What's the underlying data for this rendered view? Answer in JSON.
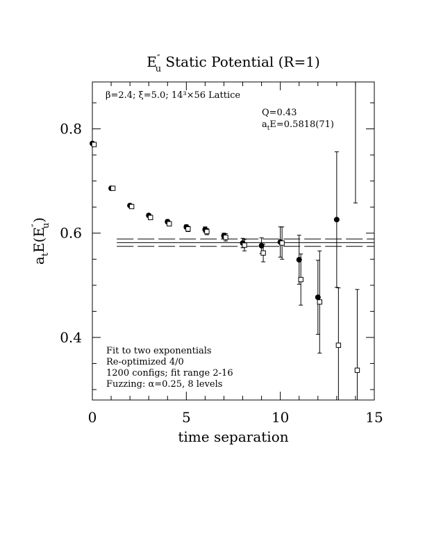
{
  "chart_data": {
    "type": "scatter",
    "title": {
      "main": "E",
      "superscript": "″",
      "subscript": "u",
      "rest": "  Static Potential (R=1)"
    },
    "subtitle": "β=2.4; ξ=5.0; 14³×56 Lattice",
    "xlabel": "time separation",
    "ylabel": {
      "pre": "a",
      "pre_sub": "t",
      "mid": "E(E",
      "sup": "″",
      "sub": "u",
      "post": ")"
    },
    "xlim": [
      0,
      15
    ],
    "ylim": [
      0.28,
      0.89
    ],
    "x_ticks": [
      0,
      5,
      10,
      15
    ],
    "x_tick_labels": [
      "0",
      "5",
      "10",
      "15"
    ],
    "y_ticks": [
      0.4,
      0.6,
      0.8
    ],
    "y_tick_labels": [
      "0.4",
      "0.6",
      "0.8"
    ],
    "grid": false,
    "annotations": {
      "q_line": "Q=0.43",
      "fit_pre": "a",
      "fit_sub": "t",
      "fit_post": "E=0.5818(71)"
    },
    "notes": [
      "Fit to two exponentials",
      "Re-optimized 4/0",
      "1200 configs; fit range 2-16",
      "Fuzzing: α=0.25, 8 levels"
    ],
    "fit": {
      "value": 0.5818,
      "error": 0.0071,
      "x_range": [
        1.3,
        15
      ]
    },
    "series": [
      {
        "marker": "filled-circle",
        "x": [
          0,
          1,
          2,
          3,
          4,
          5,
          6,
          7,
          8,
          9,
          10,
          11,
          12,
          13,
          14
        ],
        "y": [
          0.772,
          0.686,
          0.653,
          0.634,
          0.622,
          0.612,
          0.607,
          0.595,
          0.581,
          0.576,
          0.583,
          0.549,
          0.477,
          0.626,
          null
        ],
        "err": [
          0.002,
          0.002,
          0.003,
          0.003,
          0.004,
          0.004,
          0.005,
          0.005,
          0.009,
          0.015,
          0.029,
          0.047,
          0.071,
          0.13,
          null
        ],
        "err_hi_override": [
          null,
          null,
          null,
          null,
          null,
          null,
          null,
          null,
          null,
          null,
          null,
          null,
          null,
          null,
          0.895
        ],
        "err_lo_override": [
          null,
          null,
          null,
          null,
          null,
          null,
          null,
          null,
          null,
          null,
          null,
          null,
          null,
          null,
          0.658
        ]
      },
      {
        "marker": "open-square",
        "x": [
          0,
          1,
          2,
          3,
          4,
          5,
          6,
          7,
          8,
          9,
          10,
          11,
          12,
          13,
          14
        ],
        "y": [
          0.77,
          0.686,
          0.651,
          0.63,
          0.618,
          0.608,
          0.603,
          0.592,
          0.577,
          0.562,
          0.581,
          0.511,
          0.468,
          0.385,
          0.337
        ],
        "err": [
          0.002,
          0.002,
          0.003,
          0.004,
          0.004,
          0.005,
          0.006,
          0.007,
          0.011,
          0.017,
          0.031,
          0.049,
          0.098,
          0.11,
          0.155
        ]
      }
    ]
  }
}
